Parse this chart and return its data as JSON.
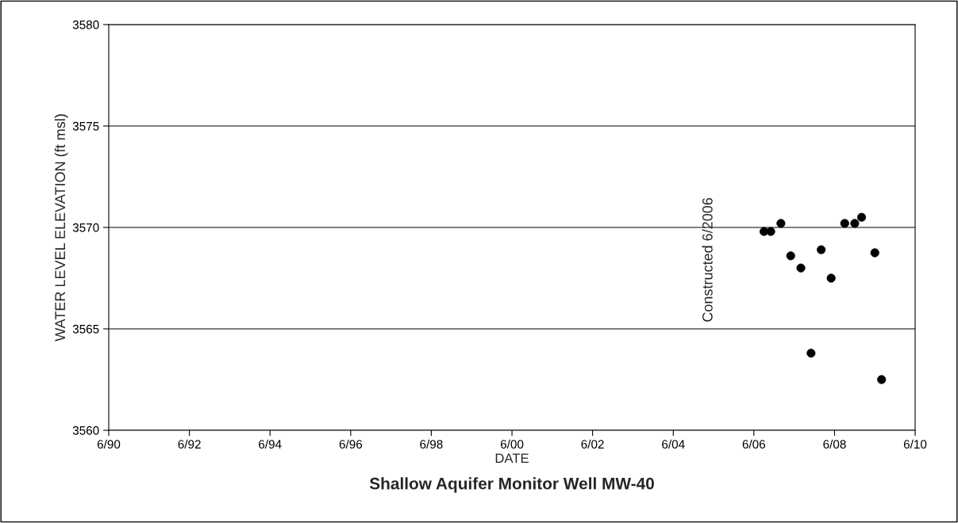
{
  "chart_data": {
    "type": "scatter",
    "title": "Shallow Aquifer Monitor Well MW-40",
    "xlabel": "DATE",
    "ylabel": "WATER LEVEL ELEVATION (ft msl)",
    "x": [
      "2006-09",
      "2006-11",
      "2007-02",
      "2007-05",
      "2007-08",
      "2007-11",
      "2008-02",
      "2008-05",
      "2008-09",
      "2008-12",
      "2009-02",
      "2009-06",
      "2009-08"
    ],
    "series": [
      {
        "color": "#000000",
        "values": [
          3569.8,
          3569.8,
          3570.2,
          3568.6,
          3568.0,
          3563.8,
          3568.9,
          3567.5,
          3570.2,
          3570.2,
          3570.5,
          3568.75,
          3562.5
        ]
      }
    ],
    "marker": "circle",
    "grid": "y",
    "legend": false,
    "xlim": [
      "1990-06",
      "2010-06"
    ],
    "xticks": [
      {
        "value": "1990-06",
        "label": "6/90"
      },
      {
        "value": "1992-06",
        "label": "6/92"
      },
      {
        "value": "1994-06",
        "label": "6/94"
      },
      {
        "value": "1996-06",
        "label": "6/96"
      },
      {
        "value": "1998-06",
        "label": "6/98"
      },
      {
        "value": "2000-06",
        "label": "6/00"
      },
      {
        "value": "2002-06",
        "label": "6/02"
      },
      {
        "value": "2004-06",
        "label": "6/04"
      },
      {
        "value": "2006-06",
        "label": "6/06"
      },
      {
        "value": "2008-06",
        "label": "6/08"
      },
      {
        "value": "2010-06",
        "label": "6/10"
      }
    ],
    "ylim": [
      3560,
      3580
    ],
    "yticks": [
      3560,
      3565,
      3570,
      3575,
      3580
    ],
    "annotations": [
      "Constructed 6/2006"
    ]
  }
}
